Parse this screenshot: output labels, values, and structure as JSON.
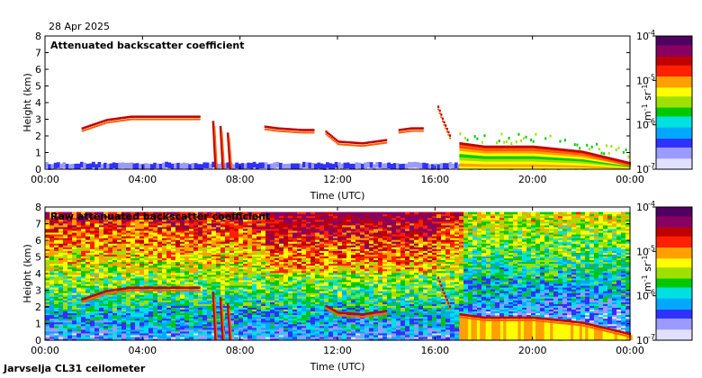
{
  "date_label": "28 Apr 2025",
  "footer_label": "Jarvselja CL31 ceilometer",
  "colors": {
    "scale": [
      "#e0e0ff",
      "#9a9aff",
      "#3030ff",
      "#00a8ff",
      "#00e0e0",
      "#00c800",
      "#a0e000",
      "#ffff00",
      "#ffa000",
      "#ff2000",
      "#c00000",
      "#8a0060",
      "#500060"
    ],
    "cloud_core": "#c00000",
    "cloud_edge": "#ff6000",
    "low_noise": "#4040ff",
    "background": "#ffffff"
  },
  "chart_data": [
    {
      "type": "heatmap",
      "title": "Attenuated backscatter coefficient",
      "xlabel": "Time (UTC)",
      "ylabel": "Height (km)",
      "x_ticks": [
        "00:00",
        "04:00",
        "08:00",
        "12:00",
        "16:00",
        "20:00",
        "00:00"
      ],
      "y_ticks": [
        "0",
        "1",
        "2",
        "3",
        "4",
        "5",
        "6",
        "7",
        "8"
      ],
      "xlim_hours": [
        0,
        24
      ],
      "ylim_km": [
        0,
        8
      ],
      "colorbar": {
        "ticks": [
          "10",
          "10",
          "10",
          "10"
        ],
        "tick_exponents": [
          "-4",
          "-5",
          "-6",
          "-7"
        ],
        "label": "m",
        "label_exp1": "-1",
        "label_mid": " sr",
        "label_exp2": "-1"
      },
      "cloud_layers": [
        {
          "t": [
            1.5,
            2.5,
            3.5,
            4.5,
            5.5,
            6.3
          ],
          "h": [
            2.4,
            2.9,
            3.1,
            3.1,
            3.1,
            3.1
          ]
        },
        {
          "t": [
            9.0,
            9.5,
            10.5,
            11.0
          ],
          "h": [
            2.5,
            2.4,
            2.3,
            2.3
          ]
        },
        {
          "t": [
            11.5,
            12.0,
            13.0,
            14.0
          ],
          "h": [
            2.2,
            1.6,
            1.5,
            1.7
          ]
        },
        {
          "t": [
            14.5,
            15.0,
            15.5
          ],
          "h": [
            2.3,
            2.4,
            2.4
          ]
        },
        {
          "t": [
            16.1,
            16.3,
            16.6
          ],
          "h": [
            3.7,
            2.9,
            1.9
          ]
        },
        {
          "t": [
            17.0,
            18.0,
            20.0,
            22.0,
            24.0
          ],
          "h": [
            1.5,
            1.3,
            1.3,
            1.0,
            0.3
          ]
        }
      ],
      "precipitation_events": [
        {
          "t": 6.9,
          "top_km": 2.9
        },
        {
          "t": 7.2,
          "top_km": 2.6
        },
        {
          "t": 7.5,
          "top_km": 2.2
        }
      ]
    },
    {
      "type": "heatmap",
      "title": "Raw attenuated backscatter coefficient",
      "xlabel": "Time (UTC)",
      "ylabel": "Height (km)",
      "x_ticks": [
        "00:00",
        "04:00",
        "08:00",
        "12:00",
        "16:00",
        "20:00",
        "00:00"
      ],
      "y_ticks": [
        "0",
        "1",
        "2",
        "3",
        "4",
        "5",
        "6",
        "7",
        "8"
      ],
      "xlim_hours": [
        0,
        24
      ],
      "ylim_km": [
        0,
        8
      ],
      "colorbar": {
        "ticks": [
          "10",
          "10",
          "10",
          "10"
        ],
        "tick_exponents": [
          "-4",
          "-5",
          "-6",
          "-7"
        ],
        "label": "m",
        "label_exp1": "-1",
        "label_mid": " sr",
        "label_exp2": "-1"
      },
      "cloud_layers": [
        {
          "t": [
            1.5,
            2.5,
            3.5,
            4.5,
            5.5,
            6.3
          ],
          "h": [
            2.4,
            2.9,
            3.1,
            3.1,
            3.1,
            3.1
          ]
        },
        {
          "t": [
            11.5,
            12.0,
            13.0,
            14.0
          ],
          "h": [
            2.0,
            1.6,
            1.5,
            1.7
          ]
        },
        {
          "t": [
            16.1,
            16.3,
            16.6
          ],
          "h": [
            3.7,
            2.9,
            1.9
          ]
        },
        {
          "t": [
            17.0,
            18.0,
            20.0,
            22.0,
            24.0
          ],
          "h": [
            1.5,
            1.3,
            1.3,
            1.0,
            0.3
          ]
        }
      ],
      "precipitation_events": [
        {
          "t": 6.9,
          "top_km": 2.9
        },
        {
          "t": 7.2,
          "top_km": 2.6
        },
        {
          "t": 7.5,
          "top_km": 2.2
        }
      ]
    }
  ]
}
